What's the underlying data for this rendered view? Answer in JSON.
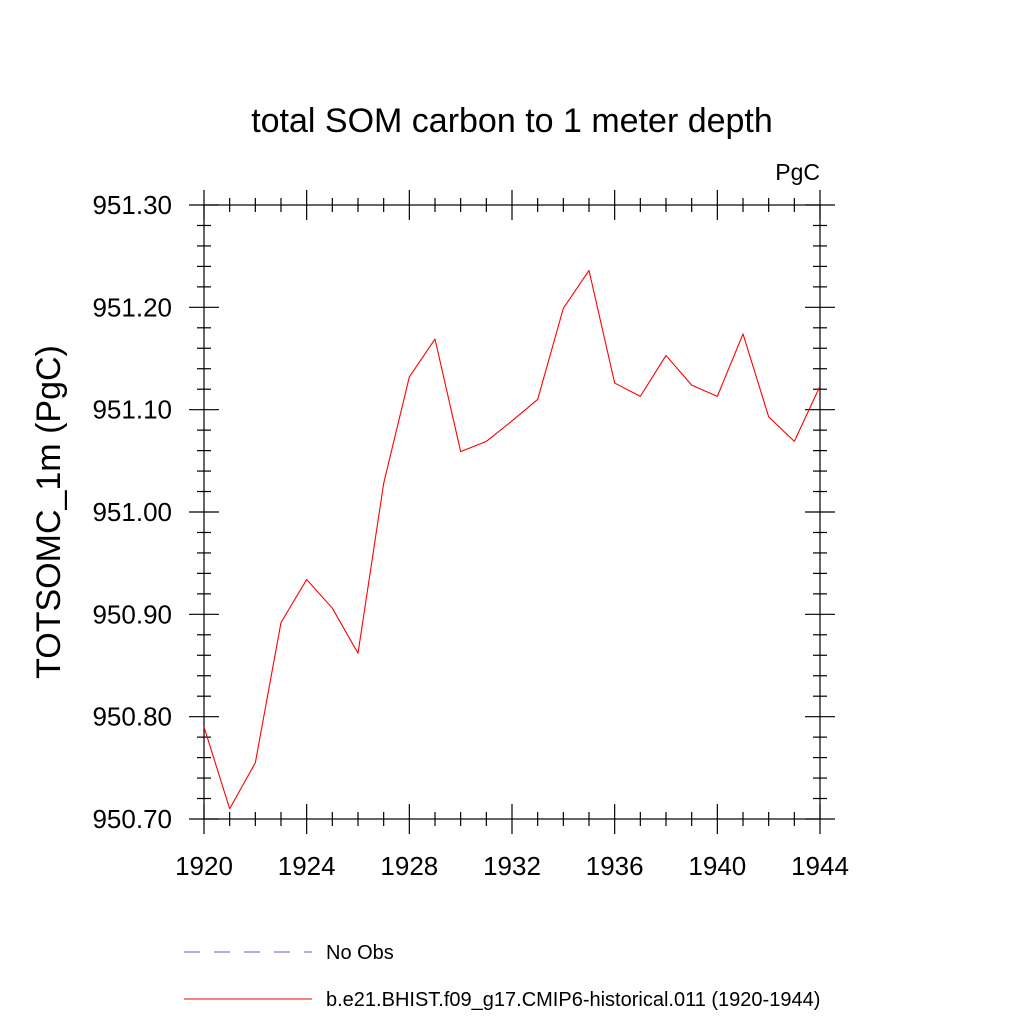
{
  "chart_data": {
    "type": "line",
    "title": "total SOM carbon to 1 meter depth",
    "units_label": "PgC",
    "ylabel": "TOTSOMC_1m  (PgC)",
    "xlabel": "",
    "xlim": [
      1920,
      1944
    ],
    "ylim": [
      950.7,
      951.3
    ],
    "x_ticks": [
      1920,
      1924,
      1928,
      1932,
      1936,
      1940,
      1944
    ],
    "x_tick_labels": [
      "1920",
      "1924",
      "1928",
      "1932",
      "1936",
      "1940",
      "1944"
    ],
    "y_ticks": [
      950.7,
      950.8,
      950.9,
      951.0,
      951.1,
      951.2,
      951.3
    ],
    "y_tick_labels": [
      "950.70",
      "950.80",
      "950.90",
      "951.00",
      "951.10",
      "951.20",
      "951.30"
    ],
    "grid": false,
    "legend_position": "bottom",
    "series": [
      {
        "name": "b.e21.BHIST.f09_g17.CMIP6-historical.011 (1920-1944)",
        "color": "#ff0000",
        "dash": "solid",
        "x": [
          1920,
          1921,
          1922,
          1923,
          1924,
          1925,
          1926,
          1927,
          1928,
          1929,
          1930,
          1931,
          1932,
          1933,
          1934,
          1935,
          1936,
          1937,
          1938,
          1939,
          1940,
          1941,
          1942,
          1943,
          1944
        ],
        "values": [
          950.79,
          950.71,
          950.755,
          950.892,
          950.934,
          950.906,
          950.862,
          951.028,
          951.132,
          951.169,
          951.059,
          951.069,
          951.089,
          951.11,
          951.199,
          951.236,
          951.126,
          951.113,
          951.153,
          951.124,
          951.113,
          951.174,
          951.093,
          951.069,
          951.123
        ]
      }
    ],
    "legend": [
      {
        "label": "No Obs",
        "color": "#6a5acd",
        "dash": "dashed"
      },
      {
        "label": "b.e21.BHIST.f09_g17.CMIP6-historical.011 (1920-1944)",
        "color": "#ff0000",
        "dash": "solid"
      }
    ]
  }
}
